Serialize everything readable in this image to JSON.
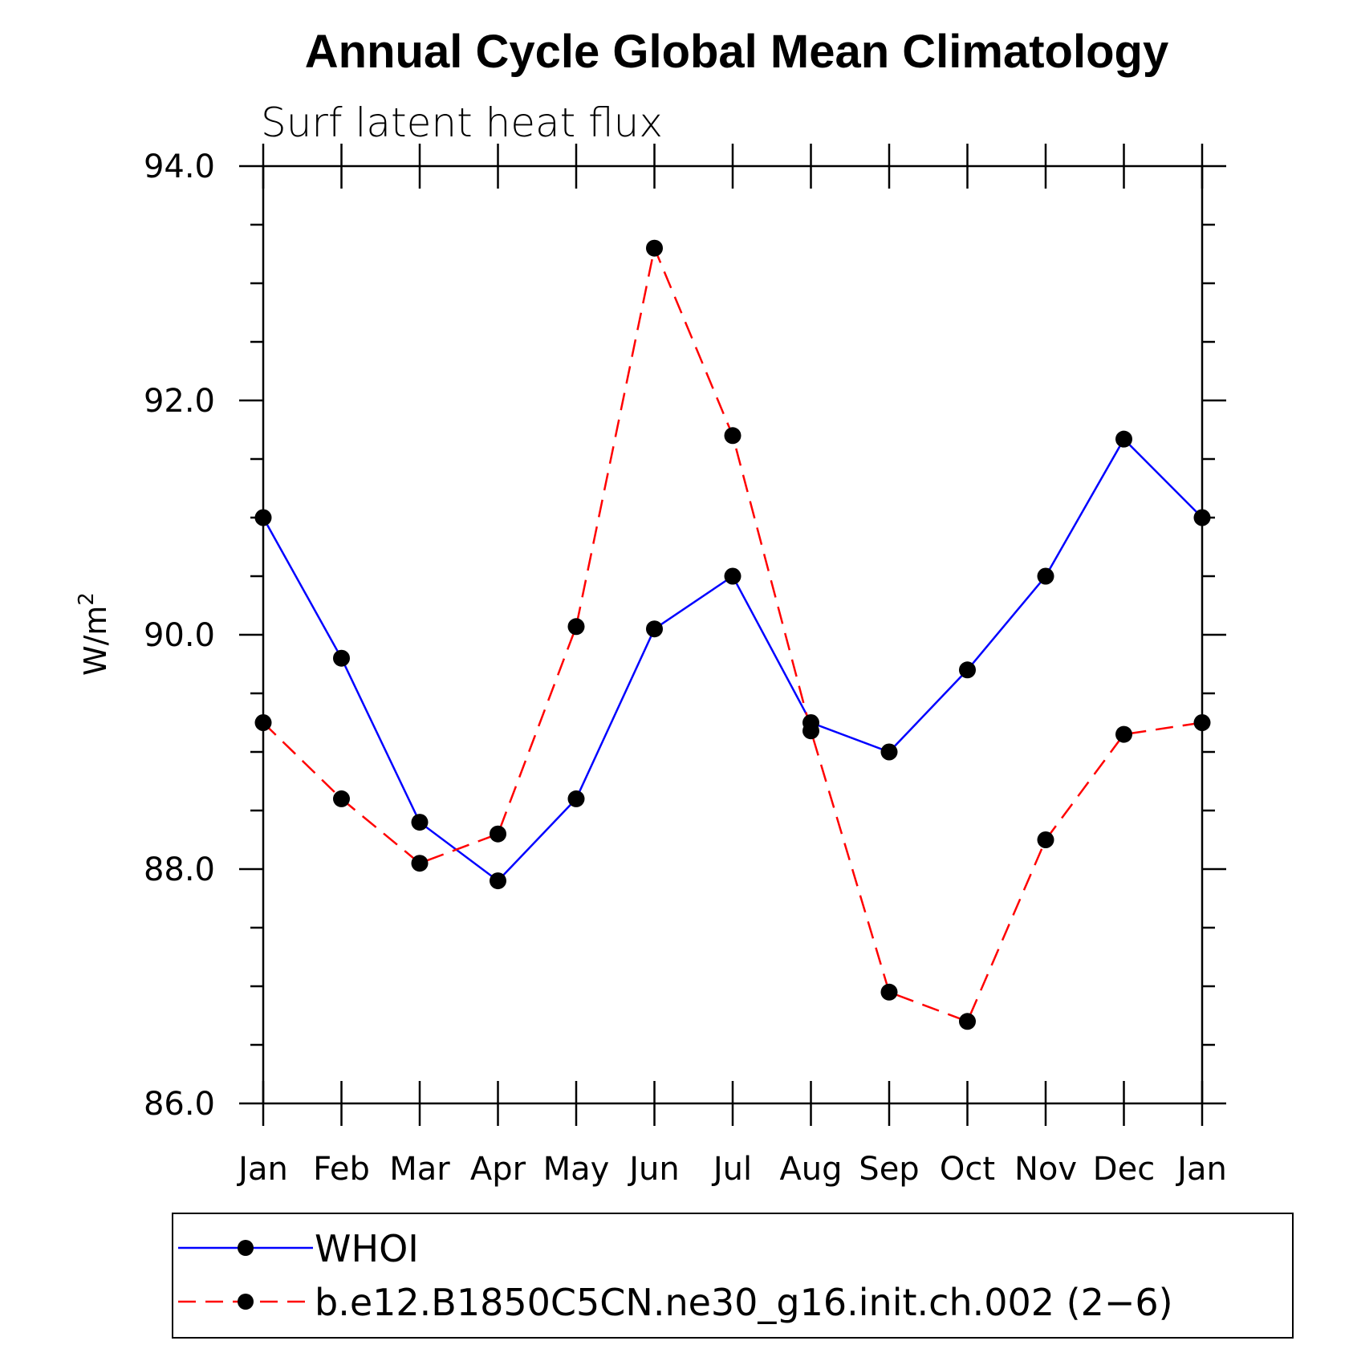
{
  "chart_data": {
    "type": "line",
    "title": "Annual Cycle Global Mean Climatology",
    "subtitle": "Surf latent heat flux",
    "ylabel": "W/m",
    "ylabel_sup": "2",
    "ylim": [
      86.0,
      94.0
    ],
    "yticks": [
      "86.0",
      "88.0",
      "90.0",
      "92.0",
      "94.0"
    ],
    "categories": [
      "Jan",
      "Feb",
      "Mar",
      "Apr",
      "May",
      "Jun",
      "Jul",
      "Aug",
      "Sep",
      "Oct",
      "Nov",
      "Dec",
      "Jan"
    ],
    "grid": false,
    "legend_position": "bottom",
    "series": [
      {
        "name": "WHOI",
        "color": "#0000ff",
        "dash": "solid",
        "marker": "filled-circle",
        "values": [
          91.0,
          89.8,
          88.4,
          87.9,
          88.6,
          90.05,
          90.5,
          89.25,
          89.0,
          89.7,
          90.5,
          91.67,
          91.0
        ]
      },
      {
        "name": "b.e12.B1850C5CN.ne30_g16.init.ch.002 (2−6)",
        "color": "#ff0000",
        "dash": "dashed",
        "marker": "filled-circle",
        "values": [
          89.25,
          88.6,
          88.05,
          88.3,
          90.07,
          93.3,
          91.7,
          89.18,
          86.95,
          86.7,
          88.25,
          89.15,
          89.25
        ]
      }
    ]
  }
}
